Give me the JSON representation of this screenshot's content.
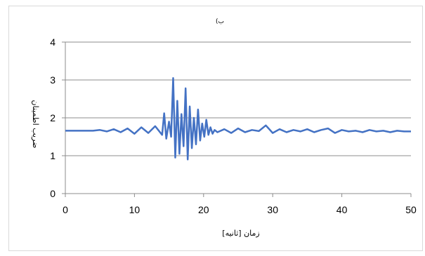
{
  "chart_data": {
    "type": "line",
    "title": "(ب",
    "xlabel": "زمان [ثانیه]",
    "ylabel": "ضریب اطمینان",
    "xlim": [
      0,
      50
    ],
    "ylim": [
      0,
      4
    ],
    "xticks": [
      "0",
      "10",
      "20",
      "30",
      "40",
      "50"
    ],
    "yticks": [
      "0",
      "1",
      "2",
      "3",
      "4"
    ],
    "grid": "horizontal",
    "legend": "none",
    "series_color": "#4472c4",
    "series": [
      {
        "x": [
          0,
          2,
          4,
          5,
          6,
          7,
          8,
          9,
          10,
          11,
          12,
          13,
          14,
          14.3,
          14.6,
          15,
          15.3,
          15.6,
          15.9,
          16.2,
          16.5,
          16.8,
          17.1,
          17.4,
          17.7,
          18.0,
          18.3,
          18.6,
          18.9,
          19.2,
          19.5,
          19.8,
          20.1,
          20.4,
          20.7,
          21.0,
          21.3,
          21.6,
          22,
          23,
          24,
          25,
          26,
          27,
          28,
          29,
          30,
          31,
          32,
          33,
          34,
          35,
          36,
          37,
          38,
          39,
          40,
          41,
          42,
          43,
          44,
          45,
          46,
          47,
          48,
          49,
          50
        ],
        "values": [
          1.66,
          1.66,
          1.66,
          1.68,
          1.64,
          1.7,
          1.62,
          1.72,
          1.58,
          1.75,
          1.6,
          1.78,
          1.55,
          2.12,
          1.45,
          1.9,
          1.5,
          3.05,
          0.95,
          2.45,
          1.05,
          2.1,
          1.25,
          2.78,
          0.9,
          2.3,
          1.2,
          2.0,
          1.3,
          2.22,
          1.4,
          1.85,
          1.5,
          1.95,
          1.55,
          1.75,
          1.58,
          1.68,
          1.62,
          1.7,
          1.6,
          1.72,
          1.62,
          1.68,
          1.65,
          1.8,
          1.6,
          1.7,
          1.62,
          1.68,
          1.64,
          1.7,
          1.62,
          1.68,
          1.72,
          1.6,
          1.68,
          1.64,
          1.66,
          1.62,
          1.68,
          1.64,
          1.66,
          1.62,
          1.66,
          1.64,
          1.64
        ]
      }
    ]
  }
}
